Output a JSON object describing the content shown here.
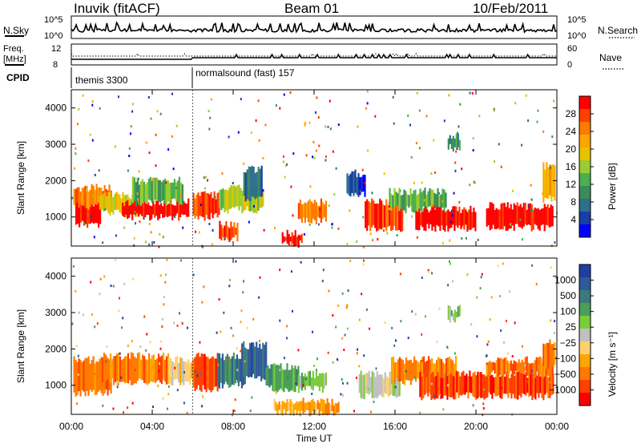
{
  "header": {
    "station": "Inuvik (fitACF)",
    "beam": "Beam 01",
    "date": "10/Feb/2011"
  },
  "top_panels": {
    "nsky_label": "N.Sky",
    "nsky_ticks": [
      "10^5",
      "10^0"
    ],
    "nsearch_label": "N.Search",
    "nsearch_ticks": [
      "10^5",
      "10^0"
    ],
    "freq_label_line1": "Freq.",
    "freq_label_line2": "[MHz]",
    "freq_ticks": [
      "12",
      "8"
    ],
    "nave_label": "Nave",
    "nave_ticks": [
      "60",
      "0"
    ],
    "cpid_label": "CPID",
    "cpid_segments": [
      {
        "label": "themis 3300",
        "start_hour": 0,
        "end_hour": 6
      },
      {
        "label": "normalsound (fast) 157",
        "start_hour": 6,
        "end_hour": 24
      }
    ]
  },
  "chart_data": [
    {
      "type": "heatmap",
      "name": "power",
      "xlabel": "",
      "ylabel": "Slant Range [km]",
      "xlim": [
        0,
        24
      ],
      "ylim": [
        200,
        4500
      ],
      "yticks": [
        "1000",
        "2000",
        "3000",
        "4000"
      ],
      "colorbar_label": "Power [dB]",
      "colorbar_ticks": [
        "28",
        "24",
        "20",
        "16",
        "12",
        "8",
        "4"
      ],
      "colorbar_colors": [
        "#ff0000",
        "#ff4000",
        "#ff7a00",
        "#ffa500",
        "#e8c200",
        "#9acd32",
        "#4caf50",
        "#3c8c5a",
        "#2e6e8e",
        "#1a3ea8",
        "#0000ff"
      ],
      "regions": [
        {
          "x0": 0.2,
          "x1": 1.4,
          "y0": 800,
          "y1": 1400,
          "level": 0
        },
        {
          "x0": 0.1,
          "x1": 2.0,
          "y0": 1300,
          "y1": 1800,
          "level": 2
        },
        {
          "x0": 1.4,
          "x1": 3.5,
          "y0": 1100,
          "y1": 1600,
          "level": 4
        },
        {
          "x0": 2.5,
          "x1": 5.8,
          "y0": 1000,
          "y1": 1400,
          "level": 0
        },
        {
          "x0": 3.0,
          "x1": 5.5,
          "y0": 1400,
          "y1": 2000,
          "level": 6
        },
        {
          "x0": 6.0,
          "x1": 7.3,
          "y0": 1000,
          "y1": 1600,
          "level": 1
        },
        {
          "x0": 7.3,
          "x1": 8.2,
          "y0": 400,
          "y1": 800,
          "level": 1
        },
        {
          "x0": 7.3,
          "x1": 9.5,
          "y0": 1200,
          "y1": 1800,
          "level": 5
        },
        {
          "x0": 8.5,
          "x1": 9.4,
          "y0": 1500,
          "y1": 2300,
          "level": 8
        },
        {
          "x0": 10.4,
          "x1": 11.4,
          "y0": 250,
          "y1": 550,
          "level": 0
        },
        {
          "x0": 11.2,
          "x1": 12.6,
          "y0": 900,
          "y1": 1400,
          "level": 2
        },
        {
          "x0": 13.6,
          "x1": 14.5,
          "y0": 1600,
          "y1": 2200,
          "level": 9
        },
        {
          "x0": 14.5,
          "x1": 16.4,
          "y0": 700,
          "y1": 1400,
          "level": 1
        },
        {
          "x0": 15.7,
          "x1": 18.5,
          "y0": 1200,
          "y1": 1700,
          "level": 6
        },
        {
          "x0": 17.0,
          "x1": 20.0,
          "y0": 700,
          "y1": 1200,
          "level": 0
        },
        {
          "x0": 20.5,
          "x1": 23.8,
          "y0": 700,
          "y1": 1300,
          "level": 0
        },
        {
          "x0": 18.6,
          "x1": 19.2,
          "y0": 2900,
          "y1": 3200,
          "level": 7
        },
        {
          "x0": 23.3,
          "x1": 23.9,
          "y0": 1500,
          "y1": 2400,
          "level": 3
        }
      ]
    },
    {
      "type": "heatmap",
      "name": "velocity",
      "xlabel": "Time UT",
      "ylabel": "Slant Range [km]",
      "xlim": [
        0,
        24
      ],
      "ylim": [
        200,
        4500
      ],
      "xticks": [
        "00:00",
        "04:00",
        "08:00",
        "12:00",
        "16:00",
        "20:00",
        "00:00"
      ],
      "yticks": [
        "1000",
        "2000",
        "3000",
        "4000"
      ],
      "colorbar_label": "Velocity [m s⁻¹]",
      "colorbar_ticks": [
        "1000",
        "500",
        "100",
        "25",
        "−25",
        "−100",
        "−500",
        "−1000"
      ],
      "colorbar_colors": [
        "#1f3fa0",
        "#2e5a9a",
        "#3c7a7a",
        "#4a9e5a",
        "#7ccc3c",
        "#c0c0c0",
        "#ffd070",
        "#ffa500",
        "#ff7a00",
        "#ff4000",
        "#ff0000"
      ],
      "regions": [
        {
          "x0": 0.1,
          "x1": 2.0,
          "y0": 800,
          "y1": 1700,
          "level": 8
        },
        {
          "x0": 1.5,
          "x1": 4.8,
          "y0": 1100,
          "y1": 1800,
          "level": 8
        },
        {
          "x0": 4.8,
          "x1": 6.2,
          "y0": 1100,
          "y1": 1700,
          "level": 6
        },
        {
          "x0": 6.0,
          "x1": 7.2,
          "y0": 900,
          "y1": 1800,
          "level": 9
        },
        {
          "x0": 7.2,
          "x1": 8.6,
          "y0": 1000,
          "y1": 1800,
          "level": 2
        },
        {
          "x0": 8.4,
          "x1": 9.6,
          "y0": 1200,
          "y1": 2100,
          "level": 1
        },
        {
          "x0": 9.6,
          "x1": 11.2,
          "y0": 900,
          "y1": 1500,
          "level": 3
        },
        {
          "x0": 11.2,
          "x1": 12.6,
          "y0": 900,
          "y1": 1300,
          "level": 4
        },
        {
          "x0": 10.0,
          "x1": 13.2,
          "y0": 250,
          "y1": 550,
          "level": 7
        },
        {
          "x0": 14.2,
          "x1": 16.2,
          "y0": 700,
          "y1": 1300,
          "level": 5
        },
        {
          "x0": 15.8,
          "x1": 19.0,
          "y0": 1100,
          "y1": 1700,
          "level": 8
        },
        {
          "x0": 17.2,
          "x1": 23.8,
          "y0": 700,
          "y1": 1300,
          "level": 9
        },
        {
          "x0": 20.5,
          "x1": 23.8,
          "y0": 1300,
          "y1": 1700,
          "level": 8
        },
        {
          "x0": 18.6,
          "x1": 19.2,
          "y0": 2800,
          "y1": 3100,
          "level": 4
        },
        {
          "x0": 23.3,
          "x1": 23.9,
          "y0": 1500,
          "y1": 2200,
          "level": 8
        }
      ]
    }
  ]
}
